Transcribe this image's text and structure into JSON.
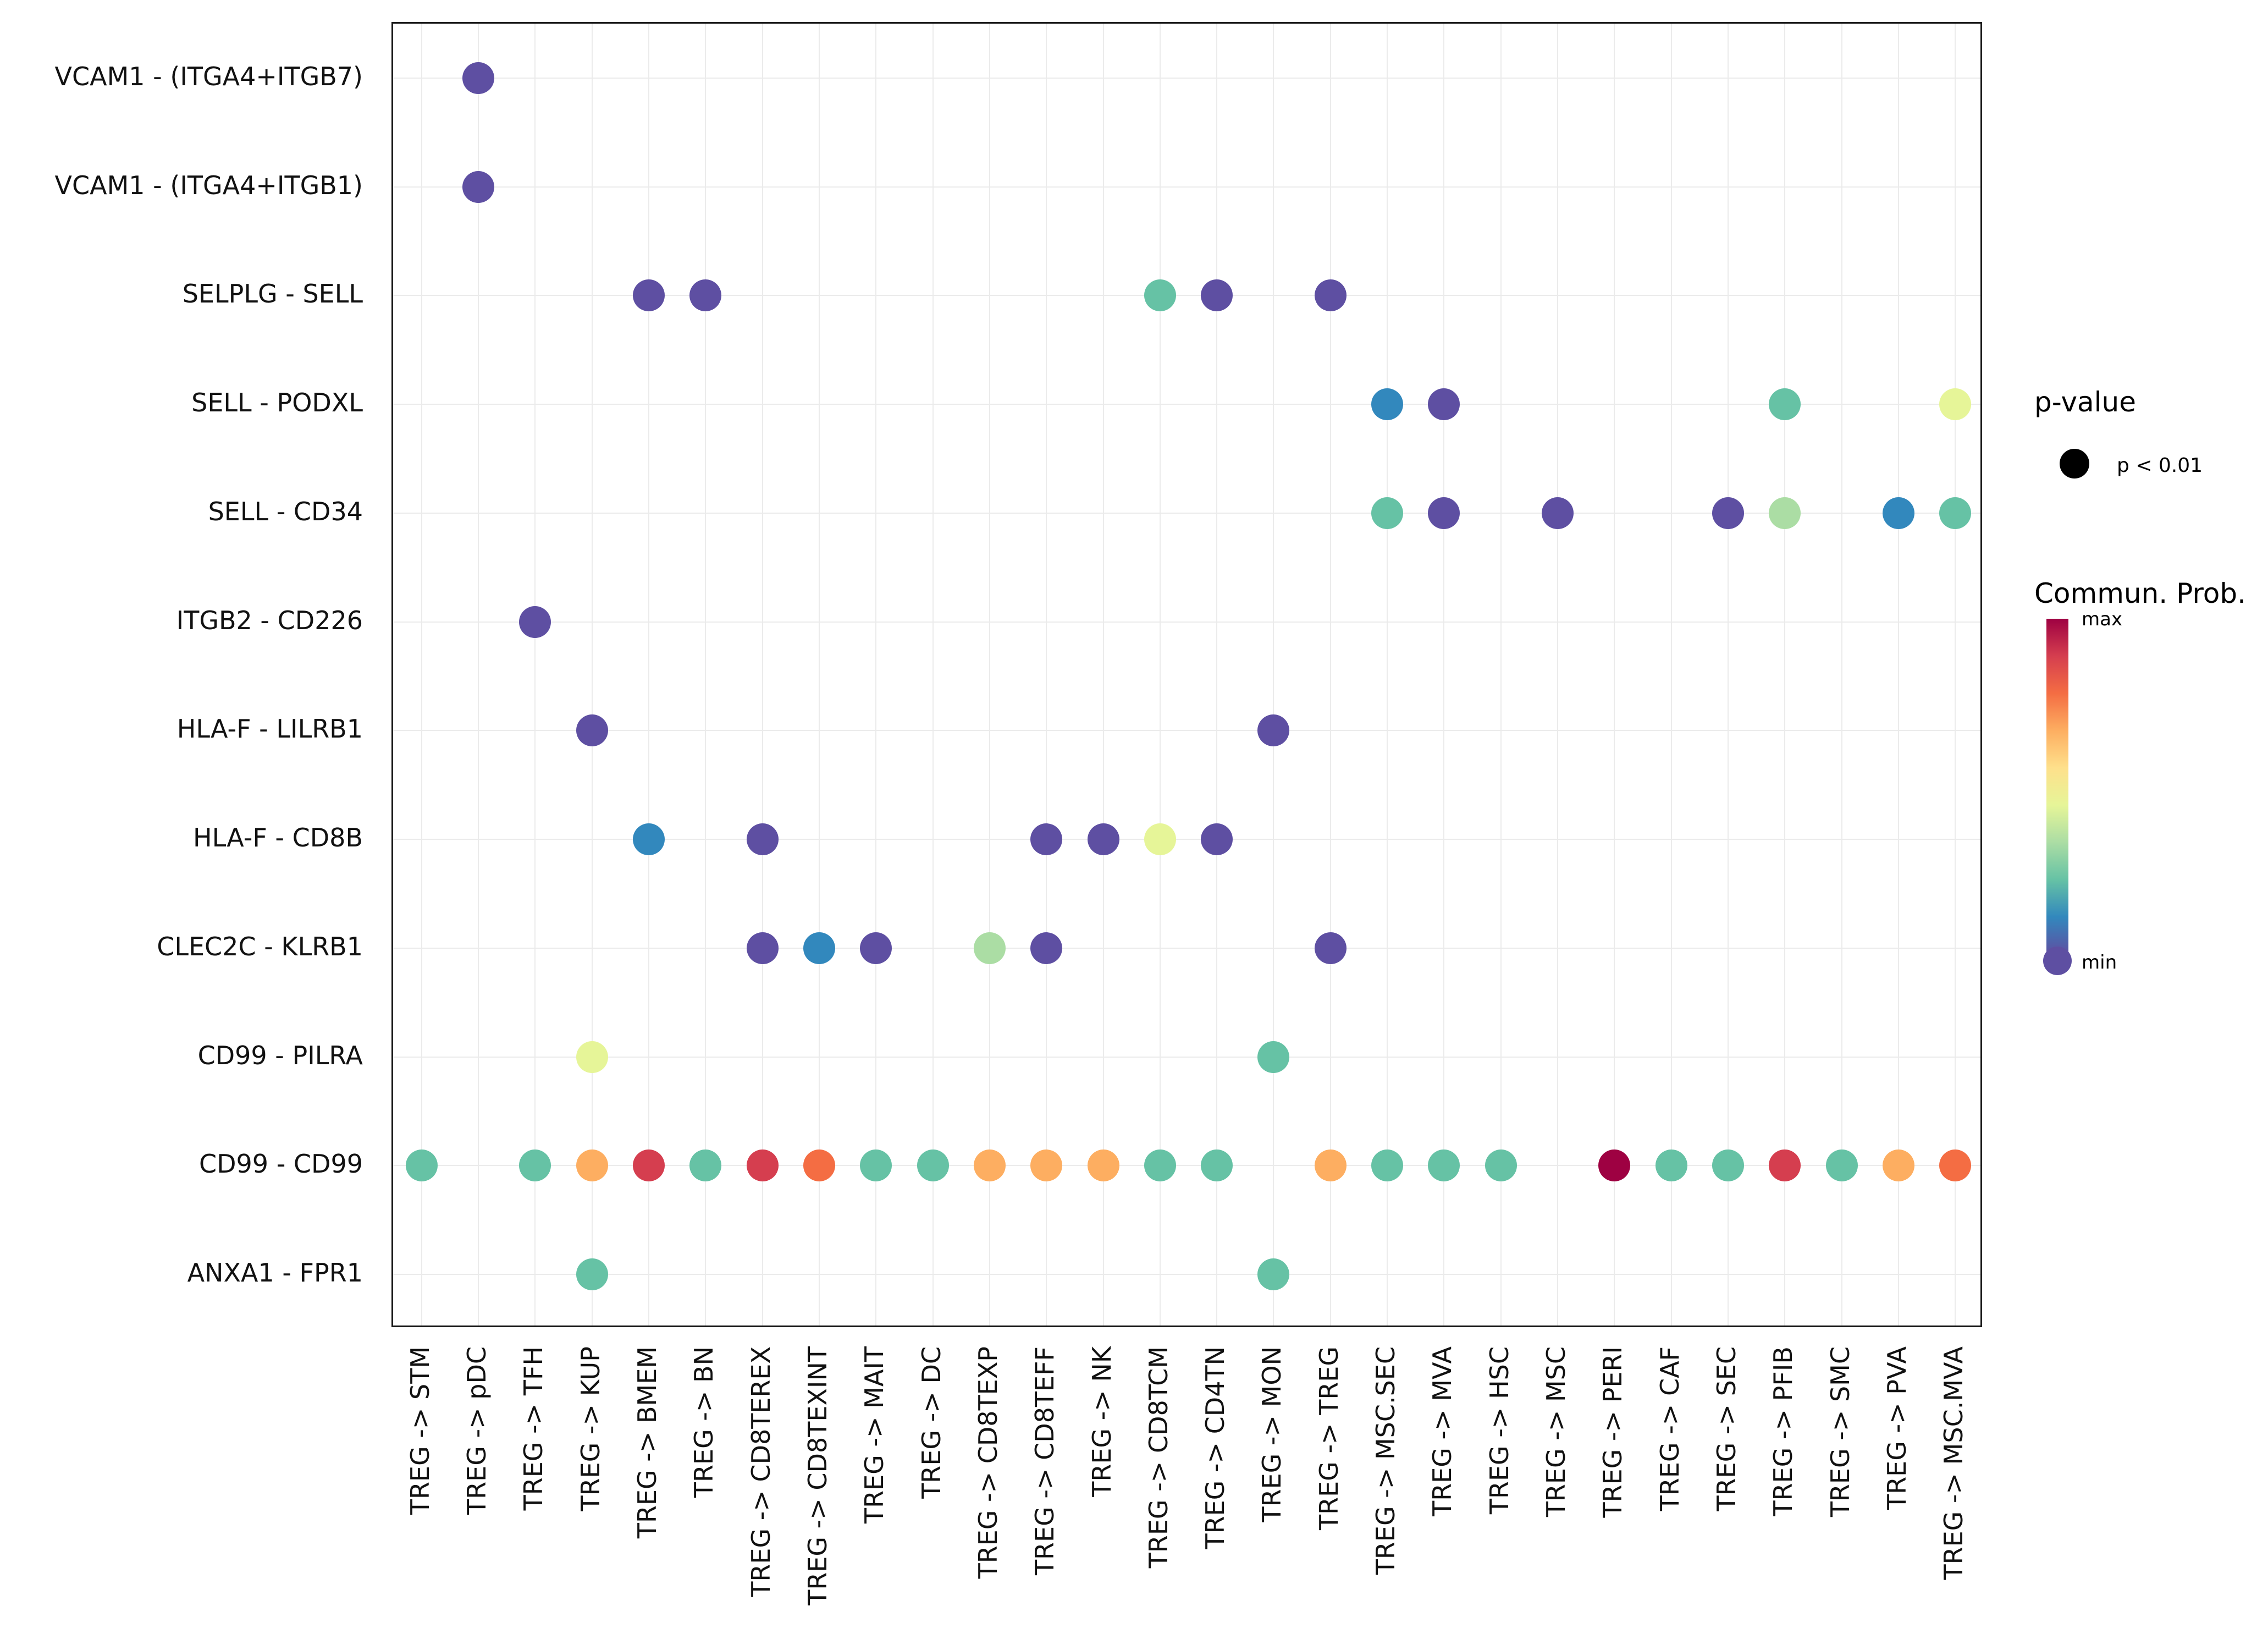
{
  "chart_data": {
    "type": "scatter",
    "subtype": "bubble-dotplot",
    "title": "",
    "grid": true,
    "legend_position": "right",
    "x_categories": [
      "TREG -> STM",
      "TREG -> pDC",
      "TREG -> TFH",
      "TREG -> KUP",
      "TREG -> BMEM",
      "TREG -> BN",
      "TREG -> CD8TEREX",
      "TREG -> CD8TEXINT",
      "TREG -> MAIT",
      "TREG -> DC",
      "TREG -> CD8TEXP",
      "TREG -> CD8TEFF",
      "TREG -> NK",
      "TREG -> CD8TCM",
      "TREG -> CD4TN",
      "TREG -> MON",
      "TREG -> TREG",
      "TREG -> MSC.SEC",
      "TREG -> MVA",
      "TREG -> HSC",
      "TREG -> MSC",
      "TREG -> PERI",
      "TREG -> CAF",
      "TREG -> SEC",
      "TREG -> PFIB",
      "TREG -> SMC",
      "TREG -> PVA",
      "TREG -> MSC.MVA"
    ],
    "y_categories": [
      "VCAM1 - (ITGA4+ITGB7)",
      "VCAM1 - (ITGA4+ITGB1)",
      "SELPLG - SELL",
      "SELL - PODXL",
      "SELL - CD34",
      "ITGB2 - CD226",
      "HLA-F - LILRB1",
      "HLA-F - CD8B",
      "CLEC2C - KLRB1",
      "CD99 - PILRA",
      "CD99 - CD99",
      "ANXA1 - FPR1"
    ],
    "points": [
      {
        "r": 0,
        "c": 1,
        "color": "#5E4FA2"
      },
      {
        "r": 1,
        "c": 1,
        "color": "#5E4FA2"
      },
      {
        "r": 2,
        "c": 4,
        "color": "#5E4FA2"
      },
      {
        "r": 2,
        "c": 5,
        "color": "#5E4FA2"
      },
      {
        "r": 2,
        "c": 13,
        "color": "#66C2A5"
      },
      {
        "r": 2,
        "c": 14,
        "color": "#5E4FA2"
      },
      {
        "r": 2,
        "c": 16,
        "color": "#5E4FA2"
      },
      {
        "r": 3,
        "c": 17,
        "color": "#3288BD"
      },
      {
        "r": 3,
        "c": 18,
        "color": "#5E4FA2"
      },
      {
        "r": 3,
        "c": 24,
        "color": "#66C2A5"
      },
      {
        "r": 3,
        "c": 27,
        "color": "#E6F598"
      },
      {
        "r": 4,
        "c": 17,
        "color": "#66C2A5"
      },
      {
        "r": 4,
        "c": 18,
        "color": "#5E4FA2"
      },
      {
        "r": 4,
        "c": 20,
        "color": "#5E4FA2"
      },
      {
        "r": 4,
        "c": 23,
        "color": "#5E4FA2"
      },
      {
        "r": 4,
        "c": 24,
        "color": "#ABDDA4"
      },
      {
        "r": 4,
        "c": 26,
        "color": "#3288BD"
      },
      {
        "r": 4,
        "c": 27,
        "color": "#66C2A5"
      },
      {
        "r": 5,
        "c": 2,
        "color": "#5E4FA2"
      },
      {
        "r": 6,
        "c": 3,
        "color": "#5E4FA2"
      },
      {
        "r": 6,
        "c": 15,
        "color": "#5E4FA2"
      },
      {
        "r": 7,
        "c": 4,
        "color": "#3288BD"
      },
      {
        "r": 7,
        "c": 6,
        "color": "#5E4FA2"
      },
      {
        "r": 7,
        "c": 11,
        "color": "#5E4FA2"
      },
      {
        "r": 7,
        "c": 12,
        "color": "#5E4FA2"
      },
      {
        "r": 7,
        "c": 13,
        "color": "#E6F598"
      },
      {
        "r": 7,
        "c": 14,
        "color": "#5E4FA2"
      },
      {
        "r": 8,
        "c": 6,
        "color": "#5E4FA2"
      },
      {
        "r": 8,
        "c": 7,
        "color": "#3288BD"
      },
      {
        "r": 8,
        "c": 8,
        "color": "#5E4FA2"
      },
      {
        "r": 8,
        "c": 10,
        "color": "#ABDDA4"
      },
      {
        "r": 8,
        "c": 11,
        "color": "#5E4FA2"
      },
      {
        "r": 8,
        "c": 16,
        "color": "#5E4FA2"
      },
      {
        "r": 9,
        "c": 3,
        "color": "#E6F598"
      },
      {
        "r": 9,
        "c": 15,
        "color": "#66C2A5"
      },
      {
        "r": 10,
        "c": 0,
        "color": "#66C2A5"
      },
      {
        "r": 10,
        "c": 2,
        "color": "#66C2A5"
      },
      {
        "r": 10,
        "c": 3,
        "color": "#FDAE61"
      },
      {
        "r": 10,
        "c": 4,
        "color": "#D53E4F"
      },
      {
        "r": 10,
        "c": 5,
        "color": "#66C2A5"
      },
      {
        "r": 10,
        "c": 6,
        "color": "#D53E4F"
      },
      {
        "r": 10,
        "c": 7,
        "color": "#F46D43"
      },
      {
        "r": 10,
        "c": 8,
        "color": "#66C2A5"
      },
      {
        "r": 10,
        "c": 9,
        "color": "#66C2A5"
      },
      {
        "r": 10,
        "c": 10,
        "color": "#FDAE61"
      },
      {
        "r": 10,
        "c": 11,
        "color": "#FDAE61"
      },
      {
        "r": 10,
        "c": 12,
        "color": "#FDAE61"
      },
      {
        "r": 10,
        "c": 13,
        "color": "#66C2A5"
      },
      {
        "r": 10,
        "c": 14,
        "color": "#66C2A5"
      },
      {
        "r": 10,
        "c": 16,
        "color": "#FDAE61"
      },
      {
        "r": 10,
        "c": 17,
        "color": "#66C2A5"
      },
      {
        "r": 10,
        "c": 18,
        "color": "#66C2A5"
      },
      {
        "r": 10,
        "c": 19,
        "color": "#66C2A5"
      },
      {
        "r": 10,
        "c": 21,
        "color": "#9E0142"
      },
      {
        "r": 10,
        "c": 22,
        "color": "#66C2A5"
      },
      {
        "r": 10,
        "c": 23,
        "color": "#66C2A5"
      },
      {
        "r": 10,
        "c": 24,
        "color": "#D53E4F"
      },
      {
        "r": 10,
        "c": 25,
        "color": "#66C2A5"
      },
      {
        "r": 10,
        "c": 26,
        "color": "#FDAE61"
      },
      {
        "r": 10,
        "c": 27,
        "color": "#F46D43"
      },
      {
        "r": 11,
        "c": 3,
        "color": "#66C2A5"
      },
      {
        "r": 11,
        "c": 15,
        "color": "#66C2A5"
      }
    ],
    "legend": {
      "pvalue_title": "p-value",
      "pvalue_items": [
        {
          "label": "p < 0.01"
        }
      ],
      "colorbar_title": "Commun. Prob.",
      "max_label": "max",
      "min_label": "min",
      "colorbar_colors_top_to_bottom": [
        "#9E0142",
        "#D53E4F",
        "#F46D43",
        "#FDAE61",
        "#FEE08B",
        "#E6F598",
        "#ABDDA4",
        "#66C2A5",
        "#3288BD",
        "#5E4FA2"
      ]
    }
  }
}
